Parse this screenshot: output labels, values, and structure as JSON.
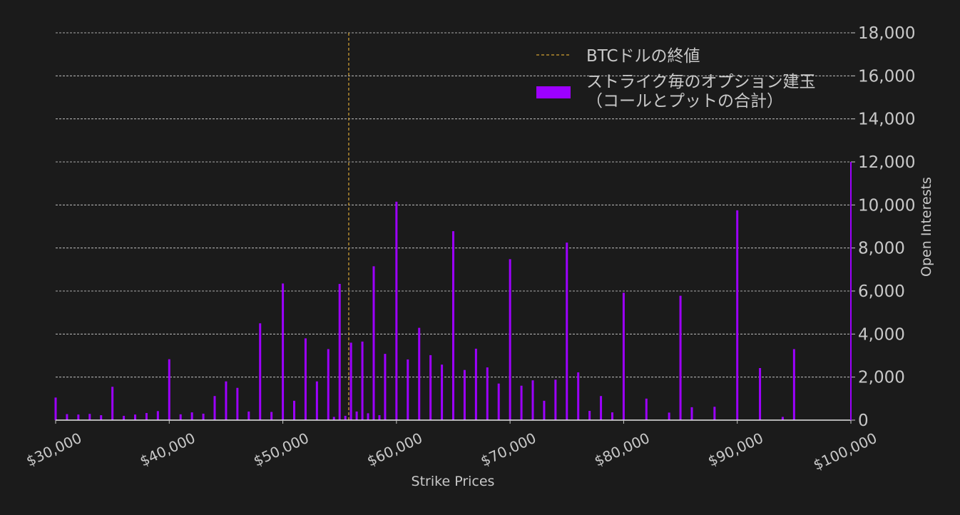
{
  "colors": {
    "background": "#1b1b1b",
    "bar": "#9d00ff",
    "close_line": "#b38a2e",
    "grid": "#d8d8d8",
    "text": "#c8c8c8"
  },
  "chart_data": {
    "type": "bar",
    "xlabel": "Strike Prices",
    "ylabel": "Open Interests",
    "xlim": [
      30000,
      100000
    ],
    "ylim": [
      0,
      18000
    ],
    "x_ticks": [
      30000,
      40000,
      50000,
      60000,
      70000,
      80000,
      90000,
      100000
    ],
    "x_tick_labels": [
      "$30,000",
      "$40,000",
      "$50,000",
      "$60,000",
      "$70,000",
      "$80,000",
      "$90,000",
      "$100,000"
    ],
    "y_ticks": [
      0,
      2000,
      4000,
      6000,
      8000,
      10000,
      12000,
      14000,
      16000,
      18000
    ],
    "y_tick_labels": [
      "0",
      "2,000",
      "4,000",
      "6,000",
      "8,000",
      "10,000",
      "12,000",
      "14,000",
      "16,000",
      "18,000"
    ],
    "grid": true,
    "legend": {
      "position": "top-right",
      "entries": [
        {
          "label": "BTCドルの終値",
          "style": "dashed-line"
        },
        {
          "label": "ストライク毎のオプション建玉\n（コールとプットの合計）",
          "style": "bar"
        }
      ]
    },
    "close_price": 55800,
    "series": [
      {
        "name": "ストライク毎のオプション建玉（コールとプットの合計）",
        "x": [
          30000,
          31000,
          32000,
          33000,
          34000,
          35000,
          36000,
          37000,
          38000,
          39000,
          40000,
          41000,
          42000,
          43000,
          44000,
          45000,
          46000,
          47000,
          48000,
          49000,
          50000,
          51000,
          52000,
          53000,
          54000,
          54500,
          55000,
          55500,
          56000,
          56500,
          57000,
          57500,
          58000,
          58500,
          59000,
          60000,
          61000,
          62000,
          63000,
          64000,
          65000,
          66000,
          67000,
          68000,
          69000,
          70000,
          71000,
          72000,
          73000,
          74000,
          75000,
          76000,
          77000,
          78000,
          79000,
          80000,
          82000,
          84000,
          85000,
          86000,
          88000,
          90000,
          92000,
          94000,
          95000
        ],
        "values": [
          1050,
          280,
          260,
          290,
          230,
          1550,
          200,
          260,
          330,
          420,
          2830,
          270,
          360,
          300,
          1120,
          1800,
          1500,
          400,
          4500,
          380,
          6350,
          900,
          3800,
          1800,
          3300,
          150,
          6330,
          200,
          3600,
          400,
          3650,
          320,
          7150,
          230,
          3080,
          10150,
          2820,
          4290,
          3020,
          2580,
          8780,
          2330,
          3320,
          2450,
          1700,
          7480,
          1600,
          1850,
          900,
          1880,
          8250,
          2220,
          430,
          1120,
          360,
          5920,
          1000,
          350,
          5780,
          600,
          620,
          9750,
          2420,
          150,
          3300
        ]
      }
    ]
  }
}
